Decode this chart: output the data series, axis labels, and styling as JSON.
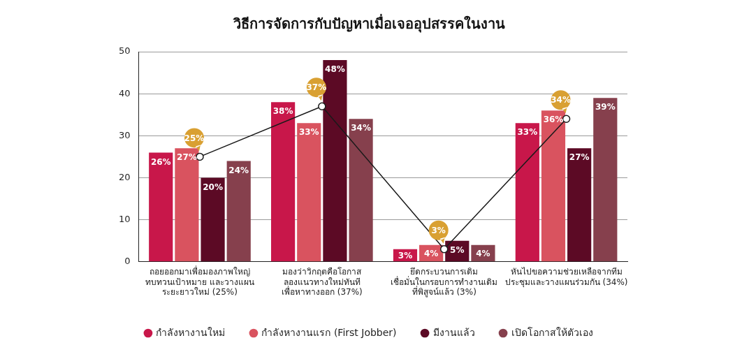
{
  "chart_data": {
    "type": "bar",
    "title": "วิธีการจัดการกับปัญหาเมื่อเจออุปสรรคในงาน",
    "categories": [
      "ถอยออกมาเพื่อมองภาพใหญ่\nทบทวนเป้าหมาย และวางแผน\nระยะยาวใหม่ (25%)",
      "มองว่าวิกฤตคือโอกาส\nลองแนวทางใหม่ทันที\nเพื่อหาทางออก (37%)",
      "ยึดกระบวนการเดิม\nเชื่อมั่นในกรอบการทำงานเดิม\nที่พิสูจน์แล้ว (3%)",
      "หันไปขอความช่วยเหลือจากทีม\nประชุมและวางแผนร่วมกัน (34%)"
    ],
    "series": [
      {
        "name": "กำลังหางานใหม่",
        "color": "#c8174a",
        "values": [
          26,
          38,
          3,
          33
        ],
        "value_labels": [
          "26%",
          "38%",
          "3%",
          "33%"
        ]
      },
      {
        "name": "กำลังหางานแรก (First Jobber)",
        "color": "#d9535f",
        "values": [
          27,
          33,
          4,
          36
        ],
        "value_labels": [
          "27%",
          "33%",
          "4%",
          "36%"
        ]
      },
      {
        "name": "มีงานแล้ว",
        "color": "#5c0a25",
        "values": [
          20,
          48,
          5,
          27
        ],
        "value_labels": [
          "20%",
          "48%",
          "5%",
          "27%"
        ]
      },
      {
        "name": "เปิดโอกาสให้ตัวเอง",
        "color": "#86404d",
        "values": [
          24,
          34,
          4,
          39
        ],
        "value_labels": [
          "24%",
          "34%",
          "4%",
          "39%"
        ]
      },
      {
        "type": "line",
        "color": "#1a1a1a",
        "values": [
          25,
          37,
          3,
          34
        ],
        "value_labels": [
          "25%",
          "37%",
          "3%",
          "34%"
        ]
      }
    ],
    "ylim": [
      0,
      50
    ],
    "yticks": [
      0,
      10,
      20,
      30,
      40,
      50
    ],
    "grid": "y",
    "legend": "bottom",
    "marker": "circle"
  }
}
